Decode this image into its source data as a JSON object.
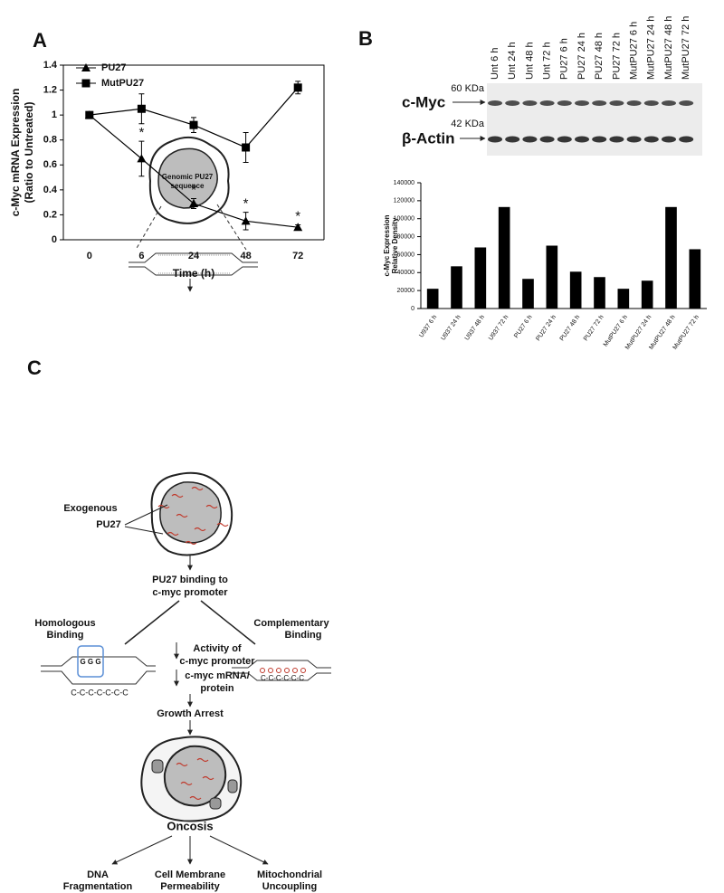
{
  "panel_labels": [
    "A",
    "B",
    "C"
  ],
  "chart_data": [
    {
      "type": "line",
      "categories": [
        "0",
        "6",
        "24",
        "48",
        "72"
      ],
      "xlabel": "Time (h)",
      "ylabel": [
        "c-Myc mRNA Expression",
        "(Ratio to Untreated)"
      ],
      "ylim": [
        0,
        1.4
      ],
      "yticks": [
        0,
        0.2,
        0.4,
        0.6,
        0.8,
        1,
        1.2,
        1.4
      ],
      "legend": "upper left",
      "series": [
        {
          "name": "PU27",
          "color": "#000000",
          "marker": "triangle",
          "values": [
            1,
            0.65,
            0.29,
            0.15,
            0.1
          ],
          "errors": [
            0,
            0.14,
            0.04,
            0.07,
            0.02
          ],
          "annotations": [
            null,
            "*",
            "*",
            "*",
            "*"
          ]
        },
        {
          "name": "MutPU27",
          "color": "#000000",
          "marker": "square",
          "values": [
            1,
            1.05,
            0.92,
            0.74,
            1.22
          ],
          "errors": [
            0,
            0.12,
            0.06,
            0.12,
            0.05
          ]
        }
      ]
    },
    {
      "type": "bar",
      "categories": [
        "U937 6 h",
        "U937 24 h",
        "U937 48 h",
        "U937 72 h",
        "PU27 6 h",
        "PU27 24 h",
        "PU27 48 h",
        "PU27 72 h",
        "MutPU27 6 h",
        "MutPU27 24 h",
        "MutPU27 48 h",
        "MutPU27 72 h"
      ],
      "values": [
        22000,
        47000,
        68000,
        113000,
        33000,
        70000,
        41000,
        35000,
        22000,
        31000,
        113000,
        66000
      ],
      "color": "#000000",
      "ylabel": [
        "c-Myc Expression",
        "Relative Density"
      ],
      "ylim": [
        0,
        140000
      ],
      "yticks": [
        0,
        20000,
        40000,
        60000,
        80000,
        100000,
        120000,
        140000
      ]
    }
  ],
  "blot": {
    "lanes": [
      "Unt 6 h",
      "Unt 24 h",
      "Unt 48 h",
      "Unt 72 h",
      "PU27 6 h",
      "PU27 24 h",
      "PU27 48 h",
      "PU27 72 h",
      "MutPU27 6 h",
      "MutPU27 24 h",
      "MutPU27 48 h",
      "MutPU27 72 h"
    ],
    "rows": [
      {
        "name": "c-Myc",
        "size": "60 KDa"
      },
      {
        "name": "β-Actin",
        "size": "42 KDa"
      }
    ]
  },
  "diagram": {
    "genomic": [
      "Genomic PU27",
      "sequence"
    ],
    "exogenous": [
      "Exogenous",
      "PU27"
    ],
    "binding": [
      "PU27 binding to",
      "c-myc promoter"
    ],
    "homologous": [
      "Homologous",
      "Binding"
    ],
    "complementary": [
      "Complementary",
      "Binding"
    ],
    "activity": [
      "Activity of",
      "c-myc promoter"
    ],
    "mrna": [
      "c-myc mRNA/",
      "protein"
    ],
    "strand_left": "C-C-C-C-C-C-C",
    "strand_right": "C-C-C-C-C-C",
    "growth_arrest": "Growth Arrest",
    "oncosis": "Oncosis",
    "outcomes": [
      [
        "DNA",
        "Fragmentation"
      ],
      [
        "Cell Membrane",
        "Permeability"
      ],
      [
        "Mitochondrial",
        "Uncoupling"
      ]
    ]
  }
}
